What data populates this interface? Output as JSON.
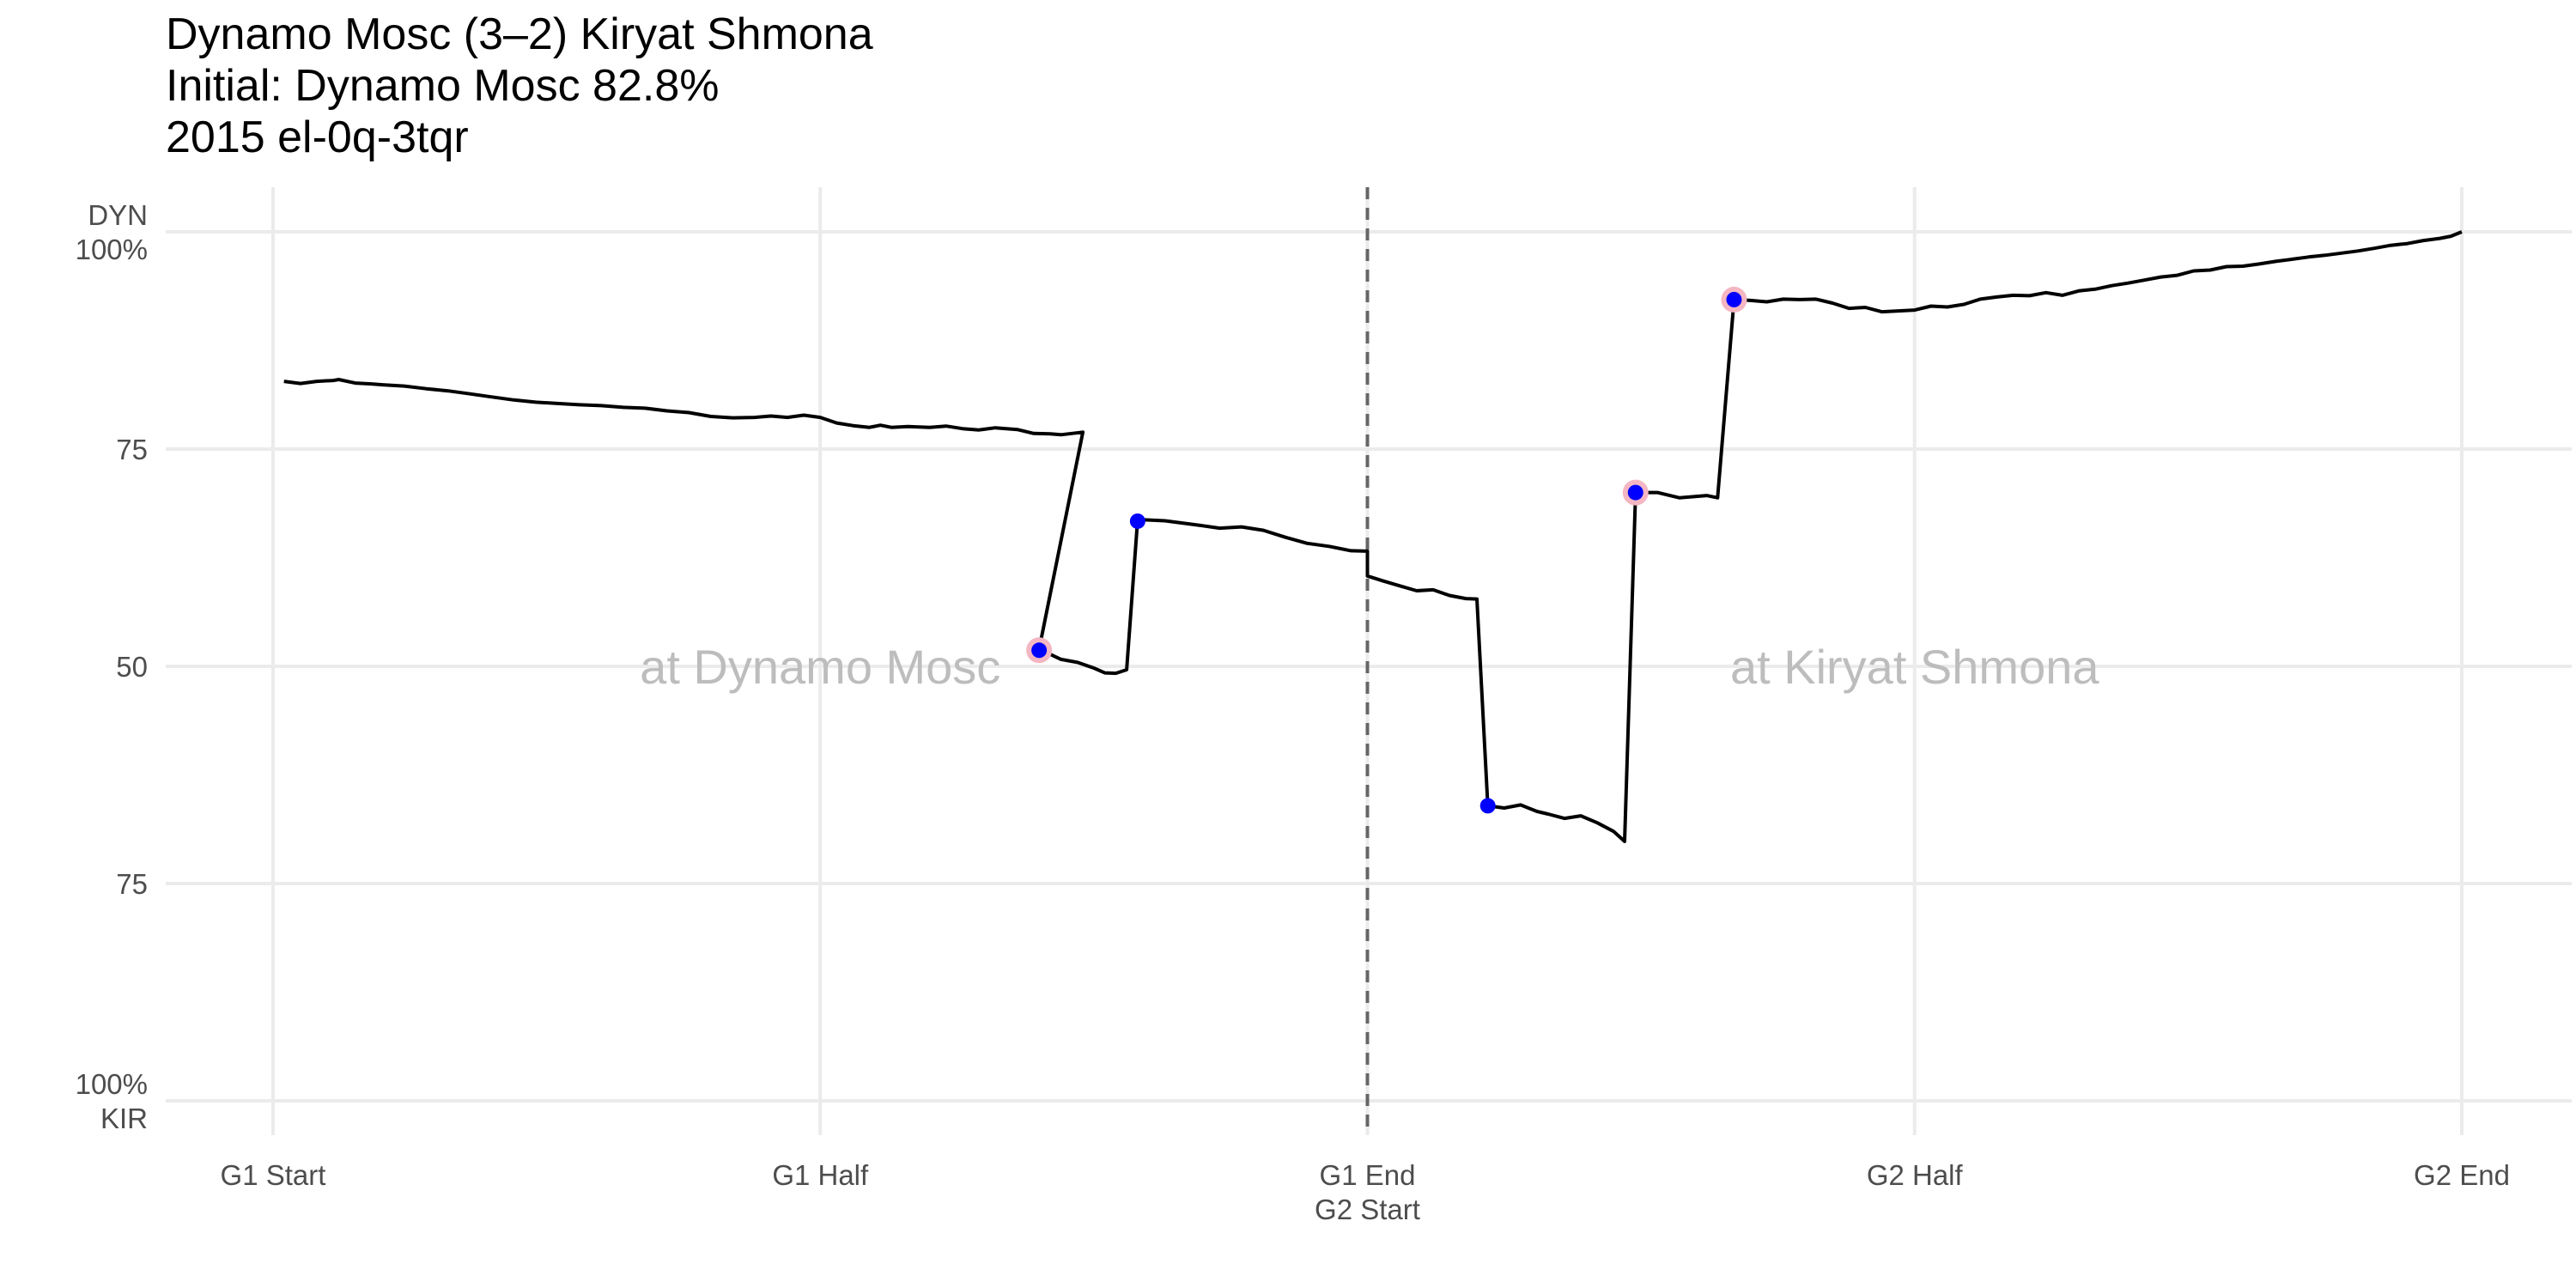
{
  "title": {
    "line1": "Dynamo Mosc (3–2) Kiryat Shmona",
    "line2": "Initial: Dynamo Mosc 82.8%",
    "line3": "2015 el-0q-3tqr"
  },
  "chart_data": {
    "type": "line",
    "title": "Dynamo Mosc (3–2) Kiryat Shmona",
    "subtitle": [
      "Initial: Dynamo Mosc 82.8%",
      "2015 el-0q-3tqr"
    ],
    "x_range": [
      0,
      4
    ],
    "y_range": [
      -100,
      100
    ],
    "grid": true,
    "y_ticks": [
      {
        "value": 100,
        "label": [
          "DYN",
          "100%"
        ]
      },
      {
        "value": 50,
        "label": [
          "75"
        ]
      },
      {
        "value": 0,
        "label": [
          "50"
        ]
      },
      {
        "value": -50,
        "label": [
          "75"
        ]
      },
      {
        "value": -100,
        "label": [
          "100%",
          "KIR"
        ]
      }
    ],
    "x_ticks": [
      {
        "value": 0,
        "label": [
          "G1 Start"
        ]
      },
      {
        "value": 1,
        "label": [
          "G1 Half"
        ]
      },
      {
        "value": 2,
        "label": [
          "G1 End",
          "G2 Start"
        ]
      },
      {
        "value": 3,
        "label": [
          "G2 Half"
        ]
      },
      {
        "value": 4,
        "label": [
          "G2 End"
        ]
      }
    ],
    "divider_x": 2,
    "annotations": [
      {
        "text": "at Dynamo Mosc",
        "x": 1.0,
        "y": 0
      },
      {
        "text": "at Kiryat Shmona",
        "x": 3.0,
        "y": 0
      }
    ],
    "line_color": "#000000",
    "series": [
      {
        "points": [
          [
            0.02,
            65.6
          ],
          [
            0.05,
            65.1
          ],
          [
            0.08,
            65.6
          ],
          [
            0.11,
            65.8
          ],
          [
            0.12,
            66.0
          ],
          [
            0.15,
            65.2
          ],
          [
            0.18,
            65.0
          ],
          [
            0.2,
            64.8
          ],
          [
            0.24,
            64.5
          ],
          [
            0.28,
            63.9
          ],
          [
            0.32,
            63.4
          ],
          [
            0.36,
            62.7
          ],
          [
            0.4,
            62.0
          ],
          [
            0.44,
            61.3
          ],
          [
            0.48,
            60.8
          ],
          [
            0.52,
            60.5
          ],
          [
            0.56,
            60.2
          ],
          [
            0.6,
            60.0
          ],
          [
            0.64,
            59.6
          ],
          [
            0.68,
            59.4
          ],
          [
            0.72,
            58.8
          ],
          [
            0.76,
            58.4
          ],
          [
            0.8,
            57.5
          ],
          [
            0.84,
            57.2
          ],
          [
            0.88,
            57.3
          ],
          [
            0.91,
            57.6
          ],
          [
            0.94,
            57.3
          ],
          [
            0.97,
            57.8
          ],
          [
            1.0,
            57.3
          ],
          [
            1.03,
            56.0
          ],
          [
            1.06,
            55.4
          ],
          [
            1.09,
            55.0
          ],
          [
            1.11,
            55.5
          ],
          [
            1.13,
            55.0
          ],
          [
            1.16,
            55.2
          ],
          [
            1.2,
            55.0
          ],
          [
            1.23,
            55.3
          ],
          [
            1.26,
            54.7
          ],
          [
            1.29,
            54.4
          ],
          [
            1.32,
            54.9
          ],
          [
            1.36,
            54.5
          ],
          [
            1.39,
            53.6
          ],
          [
            1.42,
            53.5
          ],
          [
            1.44,
            53.3
          ],
          [
            1.48,
            53.9
          ],
          [
            1.4,
            4.0
          ],
          [
            1.4,
            4.0
          ],
          [
            1.44,
            1.6
          ],
          [
            1.47,
            0.9
          ],
          [
            1.5,
            -0.4
          ],
          [
            1.52,
            -1.5
          ],
          [
            1.54,
            -1.6
          ],
          [
            1.56,
            -0.8
          ],
          [
            1.58,
            33.8
          ],
          [
            1.63,
            33.5
          ],
          [
            1.69,
            32.5
          ],
          [
            1.73,
            31.8
          ],
          [
            1.77,
            32.1
          ],
          [
            1.81,
            31.3
          ],
          [
            1.85,
            29.7
          ],
          [
            1.89,
            28.3
          ],
          [
            1.93,
            27.6
          ],
          [
            1.97,
            26.6
          ],
          [
            2.0,
            26.5
          ],
          [
            2.0,
            20.8
          ],
          [
            2.03,
            19.6
          ],
          [
            2.06,
            18.5
          ],
          [
            2.09,
            17.4
          ],
          [
            2.12,
            17.6
          ],
          [
            2.15,
            16.3
          ],
          [
            2.18,
            15.6
          ],
          [
            2.2,
            15.5
          ],
          [
            2.22,
            -32.1
          ],
          [
            2.25,
            -32.6
          ],
          [
            2.28,
            -31.9
          ],
          [
            2.31,
            -33.4
          ],
          [
            2.33,
            -34.0
          ],
          [
            2.36,
            -35.0
          ],
          [
            2.39,
            -34.4
          ],
          [
            2.42,
            -36.0
          ],
          [
            2.45,
            -38.0
          ],
          [
            2.47,
            -40.3
          ],
          [
            2.49,
            40.0
          ],
          [
            2.53,
            40.0
          ],
          [
            2.57,
            38.8
          ],
          [
            2.62,
            39.3
          ],
          [
            2.64,
            38.8
          ],
          [
            2.67,
            84.4
          ],
          [
            2.7,
            84.2
          ],
          [
            2.73,
            83.9
          ],
          [
            2.76,
            84.5
          ],
          [
            2.79,
            84.4
          ],
          [
            2.82,
            84.5
          ],
          [
            2.85,
            83.6
          ],
          [
            2.88,
            82.4
          ],
          [
            2.91,
            82.6
          ],
          [
            2.94,
            81.6
          ],
          [
            2.97,
            81.8
          ],
          [
            3.0,
            82.0
          ],
          [
            3.03,
            82.9
          ],
          [
            3.06,
            82.7
          ],
          [
            3.09,
            83.3
          ],
          [
            3.12,
            84.5
          ],
          [
            3.15,
            85.0
          ],
          [
            3.18,
            85.4
          ],
          [
            3.21,
            85.3
          ],
          [
            3.24,
            86.0
          ],
          [
            3.27,
            85.4
          ],
          [
            3.3,
            86.4
          ],
          [
            3.33,
            86.8
          ],
          [
            3.36,
            87.6
          ],
          [
            3.39,
            88.2
          ],
          [
            3.42,
            88.9
          ],
          [
            3.45,
            89.6
          ],
          [
            3.48,
            90.0
          ],
          [
            3.51,
            91.0
          ],
          [
            3.54,
            91.2
          ],
          [
            3.57,
            92.0
          ],
          [
            3.6,
            92.1
          ],
          [
            3.63,
            92.6
          ],
          [
            3.66,
            93.2
          ],
          [
            3.69,
            93.7
          ],
          [
            3.72,
            94.2
          ],
          [
            3.75,
            94.6
          ],
          [
            3.78,
            95.1
          ],
          [
            3.81,
            95.6
          ],
          [
            3.84,
            96.2
          ],
          [
            3.87,
            96.9
          ],
          [
            3.9,
            97.3
          ],
          [
            3.93,
            98.0
          ],
          [
            3.96,
            98.5
          ],
          [
            3.98,
            99.0
          ],
          [
            4.0,
            100.0
          ]
        ]
      }
    ],
    "goals": [
      {
        "x": 1.4,
        "y": 3.7,
        "highlight": true
      },
      {
        "x": 1.58,
        "y": 33.4,
        "highlight": false
      },
      {
        "x": 2.22,
        "y": -32.1,
        "highlight": false
      },
      {
        "x": 2.49,
        "y": 40.0,
        "highlight": true
      },
      {
        "x": 2.67,
        "y": 84.4,
        "highlight": true
      }
    ]
  }
}
